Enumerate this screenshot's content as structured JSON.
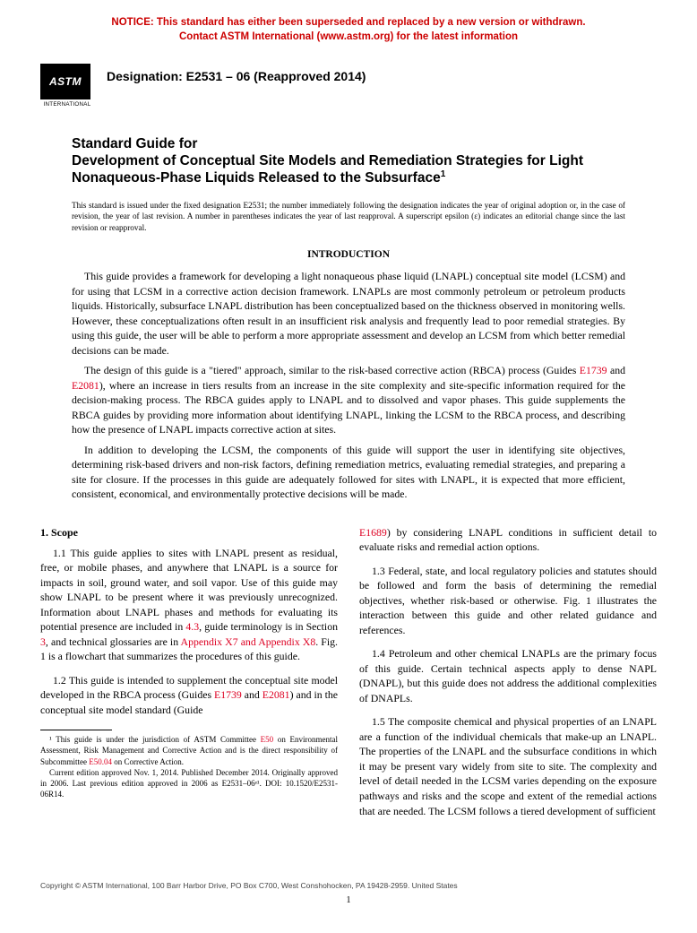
{
  "notice": {
    "line1": "NOTICE: This standard has either been superseded and replaced by a new version or withdrawn.",
    "line2": "Contact ASTM International (www.astm.org) for the latest information"
  },
  "logo": {
    "text": "ASTM",
    "sub": "INTERNATIONAL"
  },
  "designation": "Designation: E2531 – 06 (Reapproved 2014)",
  "title": {
    "pre": "Standard Guide for",
    "main": "Development of Conceptual Site Models and Remediation Strategies for Light Nonaqueous-Phase Liquids Released to the Subsurface",
    "sup": "1"
  },
  "issuance": "This standard is issued under the fixed designation E2531; the number immediately following the designation indicates the year of original adoption or, in the case of revision, the year of last revision. A number in parentheses indicates the year of last reapproval. A superscript epsilon (ε) indicates an editorial change since the last revision or reapproval.",
  "intro_head": "INTRODUCTION",
  "intro": {
    "p1": "This guide provides a framework for developing a light nonaqueous phase liquid (LNAPL) conceptual site model (LCSM) and for using that LCSM in a corrective action decision framework. LNAPLs are most commonly petroleum or petroleum products liquids. Historically, subsurface LNAPL distribution has been conceptualized based on the thickness observed in monitoring wells. However, these conceptualizations often result in an insufficient risk analysis and frequently lead to poor remedial strategies. By using this guide, the user will be able to perform a more appropriate assessment and develop an LCSM from which better remedial decisions can be made.",
    "p2a": "The design of this guide is a \"tiered\" approach, similar to the risk-based corrective action (RBCA) process (Guides ",
    "p2r1": "E1739",
    "p2b": " and ",
    "p2r2": "E2081",
    "p2c": "), where an increase in tiers results from an increase in the site complexity and site-specific information required for the decision-making process. The RBCA guides apply to LNAPL and to dissolved and vapor phases. This guide supplements the RBCA guides by providing more information about identifying LNAPL, linking the LCSM to the RBCA process, and describing how the presence of LNAPL impacts corrective action at sites.",
    "p3": "In addition to developing the LCSM, the components of this guide will support the user in identifying site objectives, determining risk-based drivers and non-risk factors, defining remediation metrics, evaluating remedial strategies, and preparing a site for closure. If the processes in this guide are adequately followed for sites with LNAPL, it is expected that more efficient, consistent, economical, and environmentally protective decisions will be made."
  },
  "scope_head": "1. Scope",
  "scope": {
    "s11a": "1.1 This guide applies to sites with LNAPL present as residual, free, or mobile phases, and anywhere that LNAPL is a source for impacts in soil, ground water, and soil vapor. Use of this guide may show LNAPL to be present where it was previously unrecognized. Information about LNAPL phases and methods for evaluating its potential presence are included in ",
    "s11r1": "4.3",
    "s11b": ", guide terminology is in Section ",
    "s11r2": "3",
    "s11c": ", and technical glossaries are in ",
    "s11r3": "Appendix X7 and Appendix X8",
    "s11d": ". Fig. 1 is a flowchart that summarizes the procedures of this guide.",
    "s12a": "1.2 This guide is intended to supplement the conceptual site model developed in the RBCA process (Guides ",
    "s12r1": "E1739",
    "s12b": " and ",
    "s12r2": "E2081",
    "s12c": ") and in the conceptual site model standard (Guide ",
    "s12r3": "E1689",
    "s12d": ") by considering LNAPL conditions in sufficient detail to evaluate risks and remedial action options.",
    "s13": "1.3 Federal, state, and local regulatory policies and statutes should be followed and form the basis of determining the remedial objectives, whether risk-based or otherwise. Fig. 1 illustrates the interaction between this guide and other related guidance and references.",
    "s14": "1.4 Petroleum and other chemical LNAPLs are the primary focus of this guide. Certain technical aspects apply to dense NAPL (DNAPL), but this guide does not address the additional complexities of DNAPLs.",
    "s15": "1.5 The composite chemical and physical properties of an LNAPL are a function of the individual chemicals that make-up an LNAPL. The properties of the LNAPL and the subsurface conditions in which it may be present vary widely from site to site. The complexity and level of detail needed in the LCSM varies depending on the exposure pathways and risks and the scope and extent of the remedial actions that are needed. The LCSM follows a tiered development of sufficient"
  },
  "footnote": {
    "f1a": "¹ This guide is under the jurisdiction of ASTM Committee ",
    "f1r1": "E50",
    "f1b": " on Environmental Assessment, Risk Management and Corrective Action and is the direct responsibility of Subcommittee ",
    "f1r2": "E50.04",
    "f1c": " on Corrective Action.",
    "f2": "Current edition approved Nov. 1, 2014. Published December 2014. Originally approved in 2006. Last previous edition approved in 2006 as E2531–06ᵉ¹. DOI: 10.1520/E2531-06R14."
  },
  "copyright": "Copyright © ASTM International, 100 Barr Harbor Drive, PO Box C700, West Conshohocken, PA 19428-2959. United States",
  "pagenum": "1"
}
